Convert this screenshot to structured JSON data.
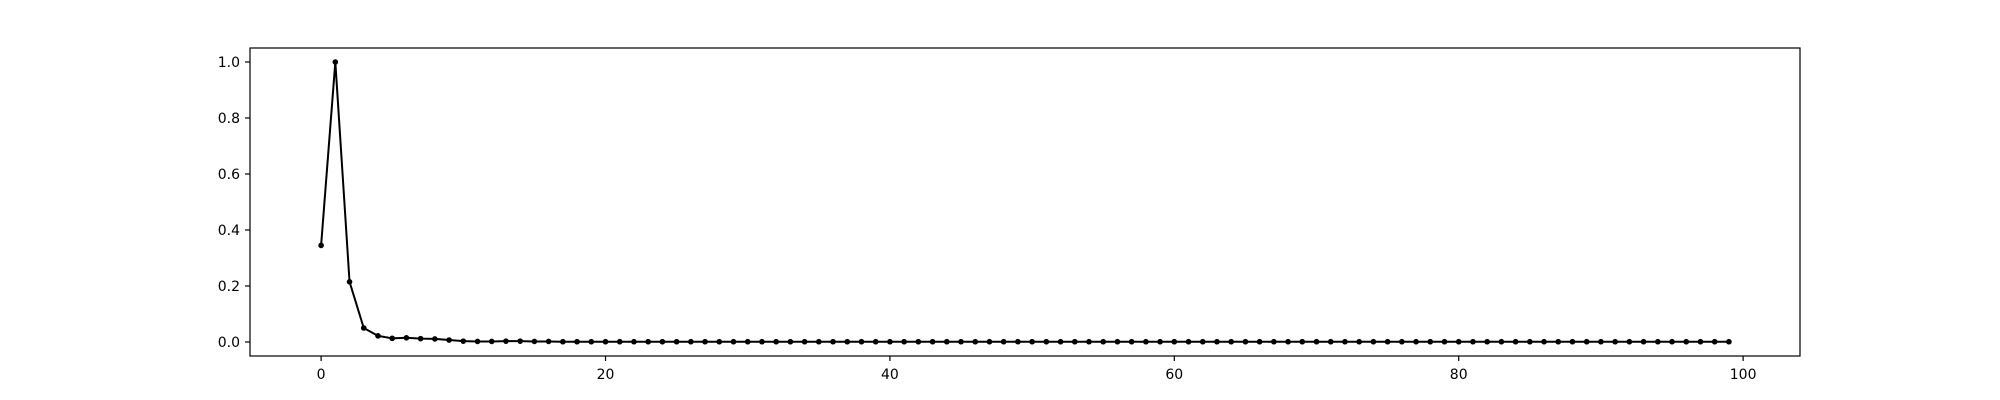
{
  "chart_data": {
    "type": "line",
    "title": "",
    "xlabel": "",
    "ylabel": "",
    "xlim": [
      -5,
      104
    ],
    "ylim": [
      -0.05,
      1.05
    ],
    "x_ticks": [
      0,
      20,
      40,
      60,
      80,
      100
    ],
    "x_tick_labels": [
      "0",
      "20",
      "40",
      "60",
      "80",
      "100"
    ],
    "y_ticks": [
      0.0,
      0.2,
      0.4,
      0.6,
      0.8,
      1.0
    ],
    "y_tick_labels": [
      "0.0",
      "0.2",
      "0.4",
      "0.6",
      "0.8",
      "1.0"
    ],
    "grid": false,
    "line_color": "#000000",
    "marker": "dot",
    "x": [
      0,
      1,
      2,
      3,
      4,
      5,
      6,
      7,
      8,
      9,
      10,
      11,
      12,
      13,
      14,
      15,
      16,
      17,
      18,
      19,
      20,
      21,
      22,
      23,
      24,
      25,
      26,
      27,
      28,
      29,
      30,
      31,
      32,
      33,
      34,
      35,
      36,
      37,
      38,
      39,
      40,
      41,
      42,
      43,
      44,
      45,
      46,
      47,
      48,
      49,
      50,
      51,
      52,
      53,
      54,
      55,
      56,
      57,
      58,
      59,
      60,
      61,
      62,
      63,
      64,
      65,
      66,
      67,
      68,
      69,
      70,
      71,
      72,
      73,
      74,
      75,
      76,
      77,
      78,
      79,
      80,
      81,
      82,
      83,
      84,
      85,
      86,
      87,
      88,
      89,
      90,
      91,
      92,
      93,
      94,
      95,
      96,
      97,
      98,
      99
    ],
    "y": [
      0.345,
      1.0,
      0.215,
      0.05,
      0.022,
      0.013,
      0.015,
      0.012,
      0.011,
      0.007,
      0.003,
      0.002,
      0.002,
      0.003,
      0.003,
      0.002,
      0.002,
      0.001,
      0.001,
      0.001,
      0.001,
      0.001,
      0.001,
      0.001,
      0.001,
      0.001,
      0.001,
      0.001,
      0.001,
      0.001,
      0.001,
      0.001,
      0.001,
      0.001,
      0.001,
      0.001,
      0.001,
      0.001,
      0.001,
      0.001,
      0.001,
      0.001,
      0.001,
      0.001,
      0.001,
      0.001,
      0.001,
      0.001,
      0.001,
      0.001,
      0.001,
      0.001,
      0.001,
      0.001,
      0.001,
      0.001,
      0.001,
      0.001,
      0.001,
      0.001,
      0.001,
      0.001,
      0.001,
      0.001,
      0.001,
      0.001,
      0.001,
      0.001,
      0.001,
      0.001,
      0.001,
      0.001,
      0.001,
      0.001,
      0.001,
      0.001,
      0.001,
      0.001,
      0.001,
      0.001,
      0.001,
      0.001,
      0.001,
      0.001,
      0.001,
      0.001,
      0.001,
      0.001,
      0.001,
      0.001,
      0.001,
      0.001,
      0.001,
      0.001,
      0.001,
      0.001,
      0.001,
      0.001,
      0.001,
      0.001
    ]
  }
}
